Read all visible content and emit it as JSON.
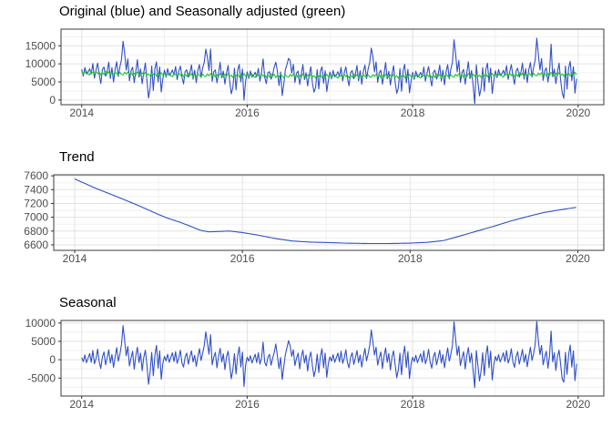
{
  "figure": {
    "background": "#ffffff"
  },
  "chart_data": {
    "type": "line",
    "x_domain": [
      2013.75,
      2020.31
    ],
    "x_major_ticks": [
      2014,
      2016,
      2018,
      2020
    ],
    "x_minor_ticks": [
      2015,
      2017,
      2019
    ],
    "time": {
      "start": 2014,
      "points_per_year": 52,
      "n": 312
    },
    "colors": {
      "blue": "#3050c8",
      "green": "#1fc42d"
    },
    "trend_anchors": [
      [
        2014.0,
        7555
      ],
      [
        2014.25,
        7420
      ],
      [
        2014.5,
        7300
      ],
      [
        2014.75,
        7175
      ],
      [
        2015.0,
        7040
      ],
      [
        2015.1,
        6990
      ],
      [
        2015.25,
        6930
      ],
      [
        2015.4,
        6860
      ],
      [
        2015.5,
        6810
      ],
      [
        2015.6,
        6788
      ],
      [
        2015.75,
        6795
      ],
      [
        2015.85,
        6800
      ],
      [
        2016.0,
        6778
      ],
      [
        2016.2,
        6738
      ],
      [
        2016.4,
        6690
      ],
      [
        2016.6,
        6655
      ],
      [
        2016.8,
        6640
      ],
      [
        2017.0,
        6634
      ],
      [
        2017.25,
        6624
      ],
      [
        2017.5,
        6619
      ],
      [
        2017.75,
        6619
      ],
      [
        2018.0,
        6625
      ],
      [
        2018.2,
        6636
      ],
      [
        2018.4,
        6662
      ],
      [
        2018.6,
        6730
      ],
      [
        2018.8,
        6800
      ],
      [
        2019.0,
        6870
      ],
      [
        2019.2,
        6945
      ],
      [
        2019.4,
        7010
      ],
      [
        2019.6,
        7070
      ],
      [
        2019.8,
        7110
      ],
      [
        2019.98,
        7142
      ]
    ],
    "seasonal_by_year": {
      "y2014": [
        600,
        -500,
        1300,
        -800,
        400,
        1700,
        -700,
        2500,
        -1100,
        300,
        2900,
        -600,
        -2400,
        800,
        2100,
        -1400,
        500,
        2700,
        -900,
        1400,
        -2100,
        700,
        3300,
        -400,
        1500,
        4100,
        9300,
        5200,
        1100,
        3600,
        -1700,
        500,
        2300,
        -2600,
        1000,
        3400,
        -800,
        1800,
        -3000,
        600,
        2600,
        -1500,
        -6700,
        -3300,
        2000,
        -4400,
        1200,
        3900,
        -2300,
        2400,
        -5300,
        -1000
      ],
      "y2015": [
        900,
        -300,
        1500,
        -700,
        600,
        1900,
        -500,
        2200,
        -1000,
        500,
        2600,
        -900,
        -2000,
        700,
        1800,
        -1200,
        800,
        2400,
        -600,
        1200,
        -1800,
        900,
        3000,
        -200,
        1700,
        3800,
        7600,
        4600,
        1500,
        6800,
        -1400,
        700,
        2000,
        -2200,
        900,
        3100,
        -600,
        1600,
        -2700,
        800,
        2300,
        -1300,
        -5200,
        -2800,
        1700,
        -3900,
        1000,
        3500,
        -2000,
        2100,
        -7300,
        -1500
      ],
      "y2016": [
        700,
        -400,
        1100,
        -900,
        300,
        1500,
        -800,
        1900,
        -1200,
        400,
        4800,
        -700,
        -1700,
        600,
        1500,
        -1500,
        400,
        2000,
        4300,
        1000,
        -2400,
        600,
        -5400,
        -1900,
        1400,
        3300,
        5200,
        3800,
        900,
        2700,
        -1600,
        400,
        1800,
        -2500,
        700,
        2600,
        -900,
        1300,
        -3100,
        500,
        2100,
        -1700,
        -4600,
        -2600,
        1500,
        -3500,
        900,
        3000,
        -2200,
        1800,
        -4800,
        -1100
      ],
      "y2017": [
        800,
        -400,
        1400,
        -700,
        500,
        1800,
        -600,
        2300,
        -1000,
        400,
        2700,
        -800,
        -2200,
        700,
        1900,
        -1300,
        600,
        2500,
        -800,
        1300,
        -2000,
        800,
        3100,
        -300,
        1600,
        3900,
        8100,
        4900,
        1300,
        3400,
        -1500,
        600,
        2100,
        -2400,
        900,
        3200,
        -700,
        1700,
        -2800,
        700,
        2400,
        -1400,
        -4900,
        -2700,
        1800,
        -4100,
        1100,
        3700,
        -2100,
        2200,
        -5100,
        -1200
      ],
      "y2018": [
        700,
        -500,
        1200,
        -800,
        400,
        1600,
        -700,
        2400,
        -1100,
        300,
        2800,
        -700,
        -2300,
        800,
        2000,
        -1400,
        500,
        2600,
        -900,
        1400,
        -2200,
        700,
        3200,
        -400,
        1500,
        4000,
        10300,
        5600,
        1200,
        3700,
        -1600,
        500,
        2200,
        -2500,
        1000,
        3300,
        -800,
        1800,
        -3100,
        -7600,
        2500,
        -1500,
        -5800,
        -3000,
        1900,
        -4300,
        1200,
        3800,
        -2200,
        2300,
        -5500,
        -1300
      ],
      "y2019": [
        900,
        -300,
        1400,
        -600,
        500,
        1900,
        -500,
        2500,
        -900,
        400,
        3000,
        -600,
        -2100,
        900,
        2200,
        -1200,
        700,
        2800,
        -700,
        1500,
        -1900,
        900,
        3400,
        -200,
        1700,
        4200,
        10400,
        5100,
        1400,
        3900,
        -1400,
        700,
        2300,
        -2300,
        1100,
        7800,
        -600,
        1900,
        -2900,
        800,
        2600,
        -1300,
        -5300,
        -6100,
        2000,
        -4000,
        1300,
        4000,
        -2000,
        2400,
        -5700,
        -1100
      ]
    },
    "remainder_pattern": [
      320,
      -410,
      150,
      480,
      -260,
      -590,
      430,
      90,
      -340,
      520,
      -160,
      310,
      -490,
      240,
      -370,
      560,
      -120,
      410,
      -530,
      180,
      -280,
      470,
      -60,
      -440,
      350,
      -210,
      -350,
      420,
      -130,
      510,
      -240,
      380,
      -470,
      160,
      -290,
      540,
      -80,
      -420,
      330,
      -190,
      460,
      -310,
      120,
      -560,
      270,
      -90,
      390,
      -450,
      210,
      -330,
      480,
      -140
    ],
    "panels": [
      {
        "title": "Original (blue) and Seasonally adjusted (green)",
        "ylim": [
          -1300,
          19600
        ],
        "y_major_ticks": [
          0,
          5000,
          10000,
          15000
        ],
        "y_minor_ticks": [
          2500,
          7500,
          12500,
          17500
        ],
        "series": [
          {
            "name": "Original",
            "color_key": "blue",
            "compose": "trend+seasonal+remainder"
          },
          {
            "name": "Seasonally adjusted",
            "color_key": "green",
            "compose": "trend+remainder"
          }
        ]
      },
      {
        "title": "Trend",
        "ylim": [
          6520,
          7615
        ],
        "y_major_ticks": [
          6600,
          6800,
          7000,
          7200,
          7400,
          7600
        ],
        "y_minor_ticks": [
          6700,
          6900,
          7100,
          7300,
          7500
        ],
        "series": [
          {
            "name": "Trend",
            "color_key": "blue",
            "compose": "trend"
          }
        ]
      },
      {
        "title": "Seasonal",
        "ylim": [
          -9900,
          10700
        ],
        "y_major_ticks": [
          -5000,
          0,
          5000,
          10000
        ],
        "y_minor_ticks": [
          -7500,
          -2500,
          2500,
          7500
        ],
        "series": [
          {
            "name": "Seasonal",
            "color_key": "blue",
            "compose": "seasonal"
          }
        ]
      }
    ]
  }
}
